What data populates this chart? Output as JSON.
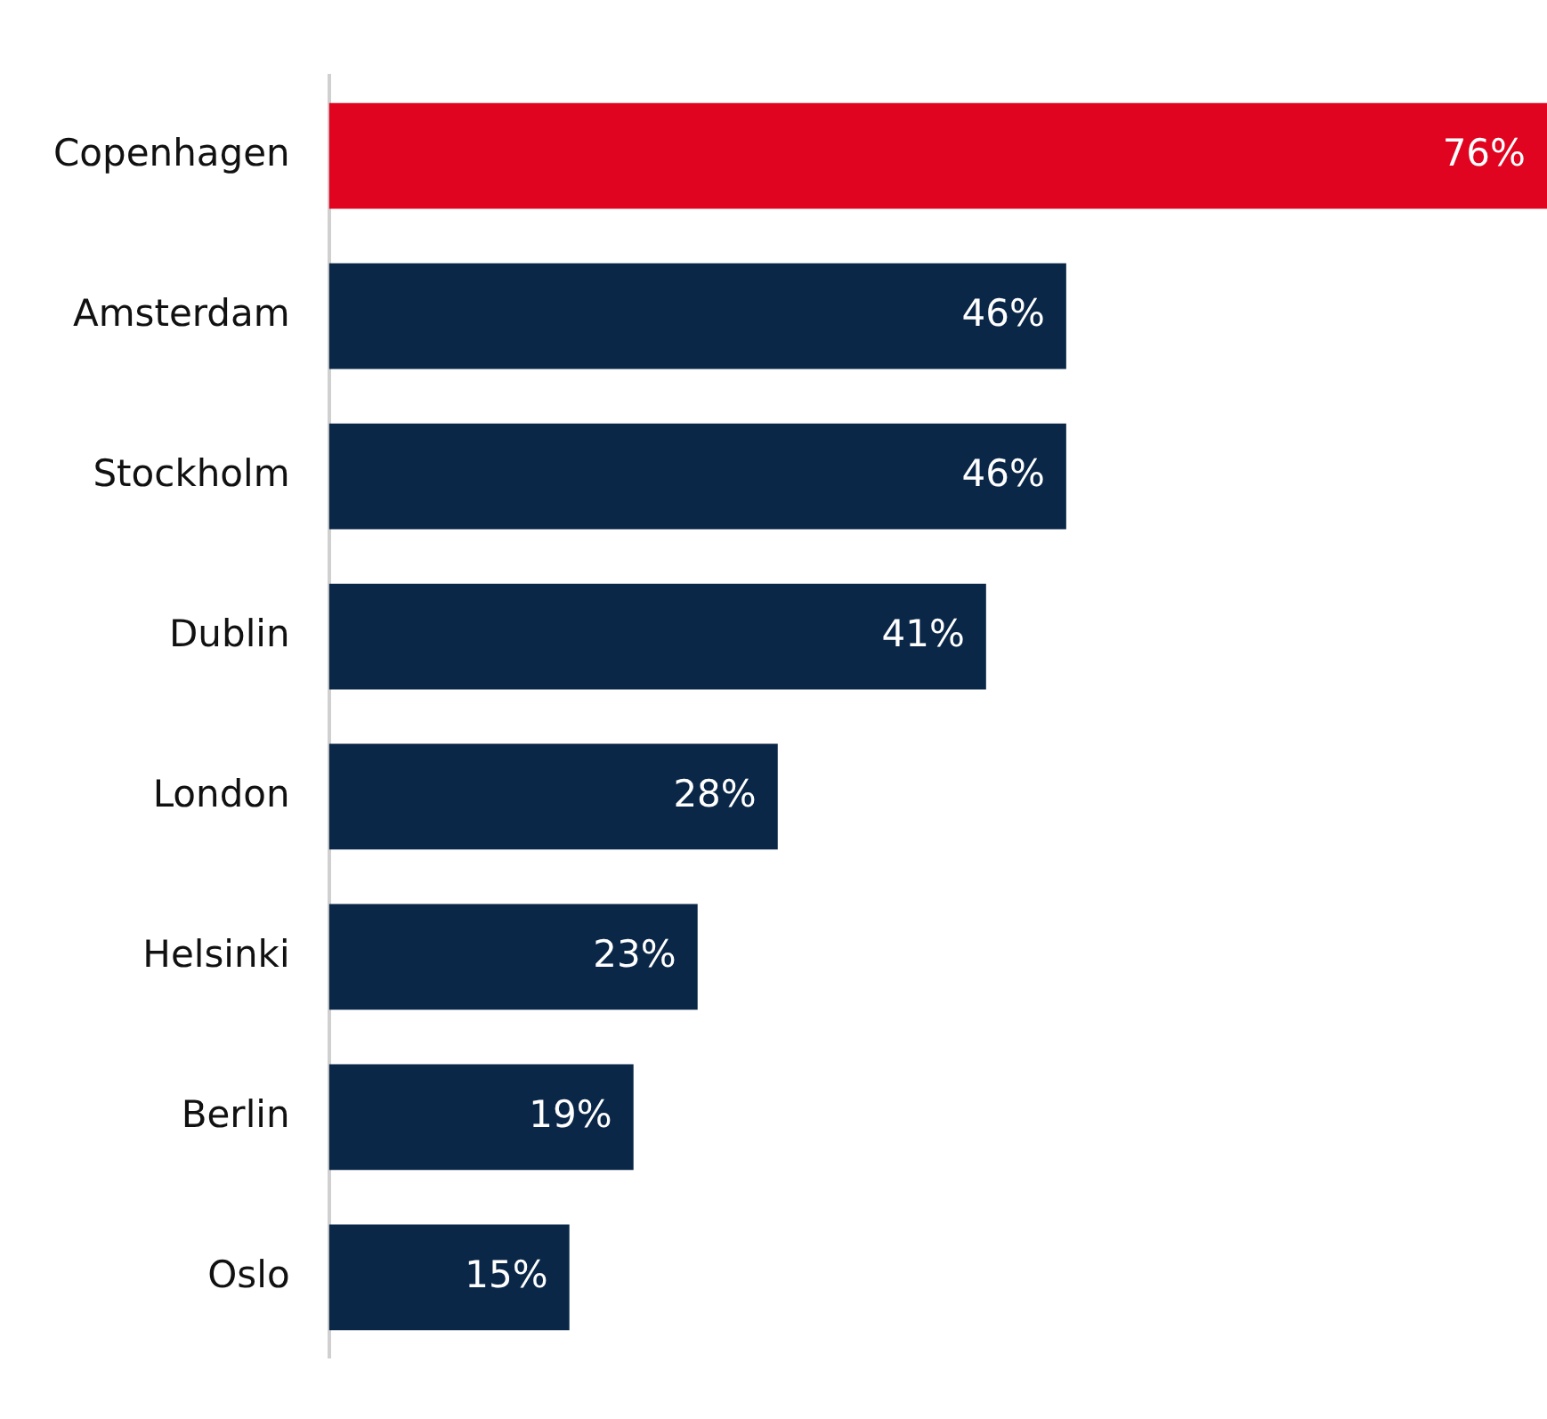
{
  "chart_data": {
    "type": "bar",
    "orientation": "horizontal",
    "categories": [
      "Copenhagen",
      "Amsterdam",
      "Stockholm",
      "Dublin",
      "London",
      "Helsinki",
      "Berlin",
      "Oslo"
    ],
    "values": [
      76,
      46,
      46,
      41,
      28,
      23,
      19,
      15
    ],
    "colors": [
      "#e00420",
      "#0a2748",
      "#0a2748",
      "#0a2748",
      "#0a2748",
      "#0a2748",
      "#0a2748",
      "#0a2748"
    ],
    "value_labels": [
      "76%",
      "46%",
      "46%",
      "41%",
      "28%",
      "23%",
      "19%",
      "15%"
    ],
    "legend": false
  }
}
